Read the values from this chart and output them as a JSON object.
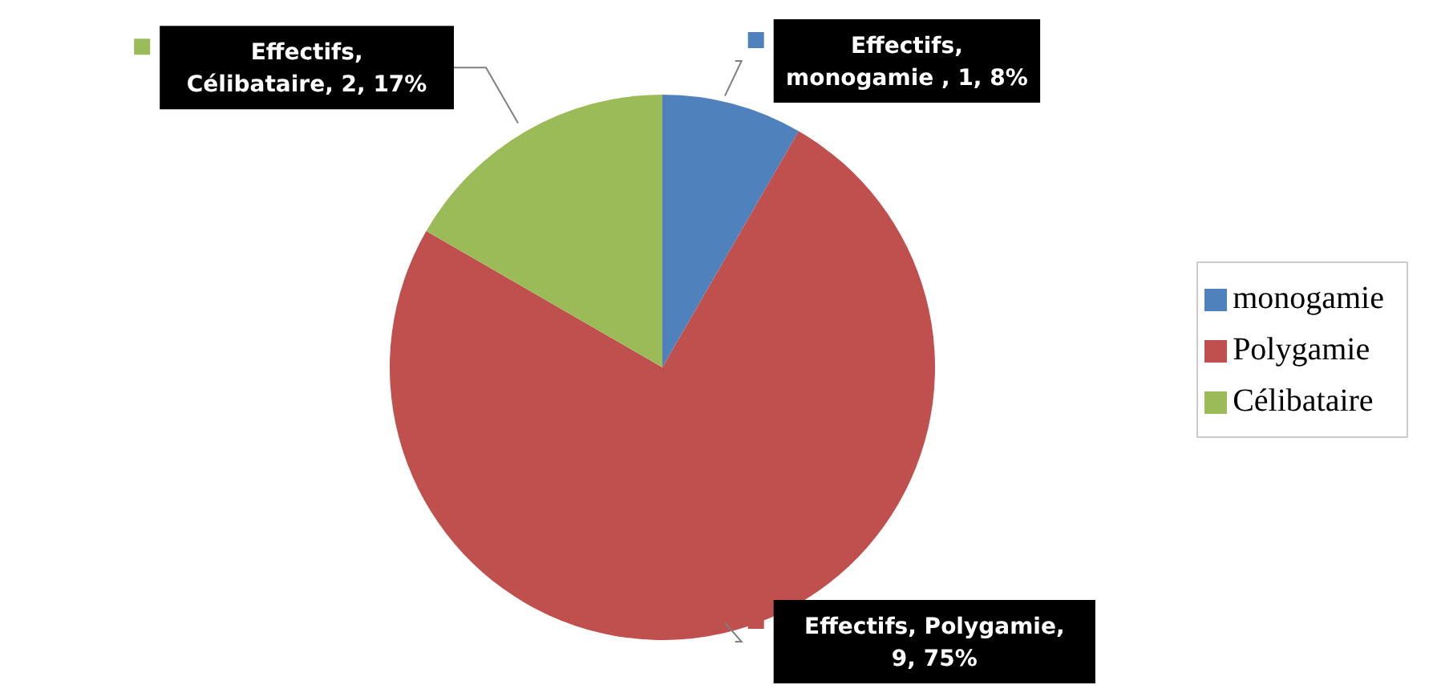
{
  "chart_data": {
    "type": "pie",
    "categories": [
      "monogamie",
      "Polygamie",
      "Célibataire"
    ],
    "values": [
      1,
      9,
      2
    ],
    "colors": [
      "#4f81bd",
      "#c0504d",
      "#9bbb59"
    ],
    "value_labels": [
      "Effectifs,\nmonogamie , 1, 8%",
      "Effectifs, Polygamie,\n9, 75%",
      "Effectifs,\nCélibataire, 2, 17%"
    ],
    "legend": "right"
  }
}
